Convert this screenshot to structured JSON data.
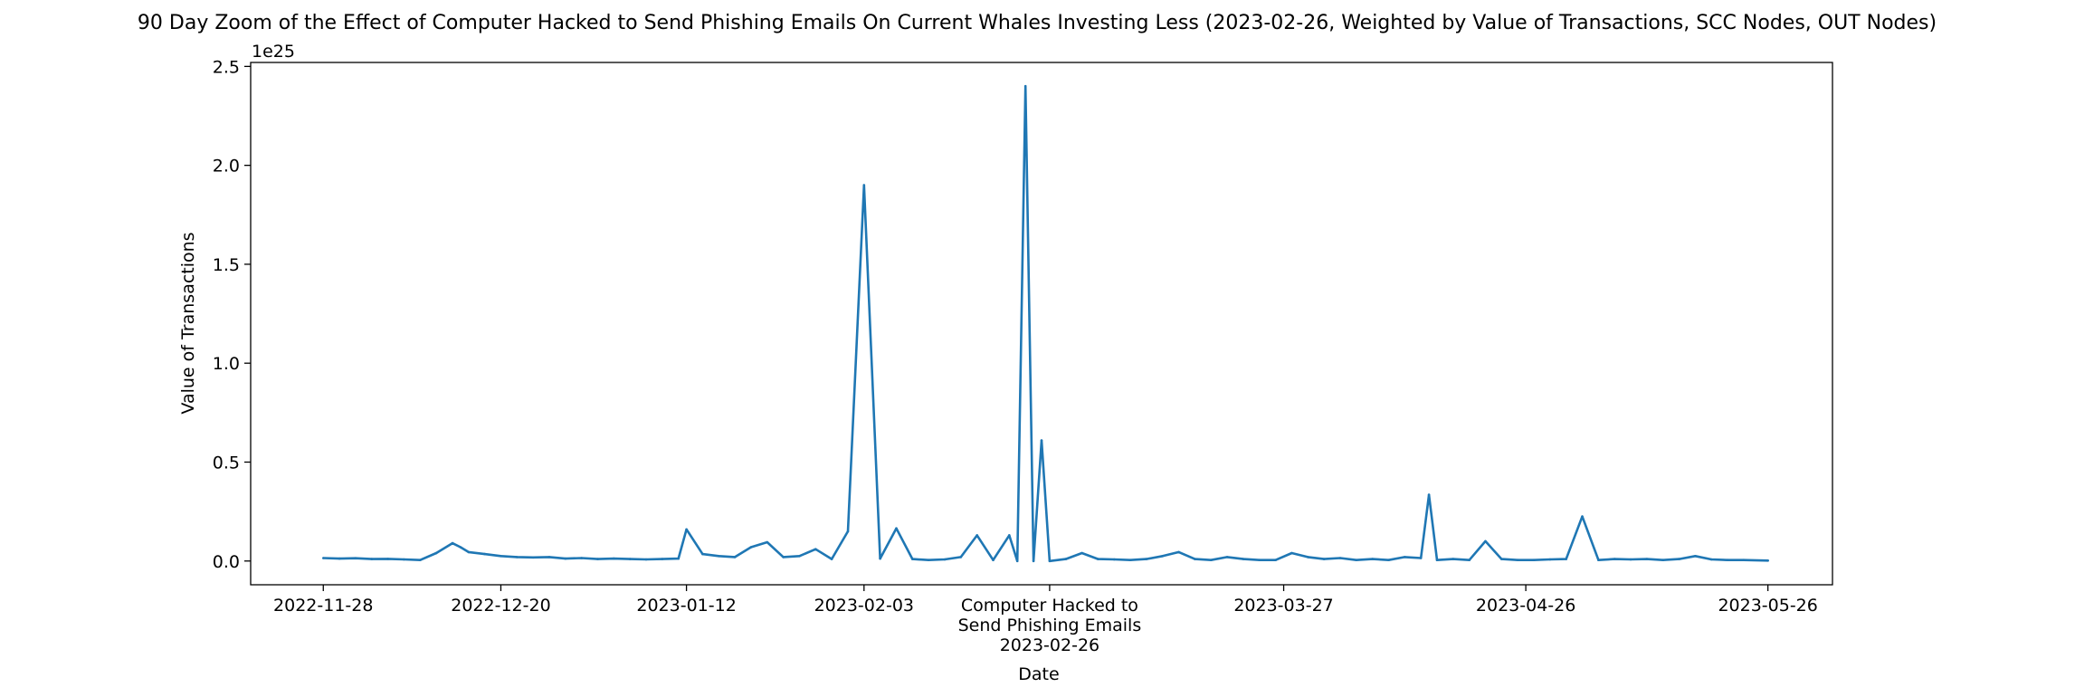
{
  "chart_data": {
    "type": "line",
    "title": "90 Day Zoom of the Effect of Computer Hacked to Send Phishing Emails On Current Whales Investing Less (2023-02-26, Weighted by Value of Transactions, SCC Nodes, OUT Nodes)",
    "xlabel": "Date",
    "ylabel": "Value of Transactions",
    "y_offset_text": "1e25",
    "y_multiplier": 1e+25,
    "ylim": [
      -0.12,
      2.52
    ],
    "xlim": [
      "2022-11-19",
      "2023-06-03"
    ],
    "grid": false,
    "legend": "none",
    "line_color": "#1f77b4",
    "x_ticks": [
      {
        "date": "2022-11-28",
        "label": "2022-11-28"
      },
      {
        "date": "2022-12-20",
        "label": "2022-12-20"
      },
      {
        "date": "2023-01-12",
        "label": "2023-01-12"
      },
      {
        "date": "2023-02-03",
        "label": "2023-02-03"
      },
      {
        "date": "2023-02-26",
        "label": "Computer Hacked to\nSend Phishing Emails\n2023-02-26"
      },
      {
        "date": "2023-03-27",
        "label": "2023-03-27"
      },
      {
        "date": "2023-04-26",
        "label": "2023-04-26"
      },
      {
        "date": "2023-05-26",
        "label": "2023-05-26"
      }
    ],
    "y_ticks": [
      "0.0",
      "0.5",
      "1.0",
      "1.5",
      "2.0",
      "2.5"
    ],
    "series": [
      {
        "x": [
          "2022-11-28",
          "2022-11-30",
          "2022-12-02",
          "2022-12-04",
          "2022-12-06",
          "2022-12-08",
          "2022-12-10",
          "2022-12-12",
          "2022-12-14",
          "2022-12-15",
          "2022-12-16",
          "2022-12-18",
          "2022-12-20",
          "2022-12-22",
          "2022-12-24",
          "2022-12-26",
          "2022-12-28",
          "2022-12-30",
          "2023-01-01",
          "2023-01-03",
          "2023-01-05",
          "2023-01-07",
          "2023-01-09",
          "2023-01-11",
          "2023-01-12",
          "2023-01-14",
          "2023-01-16",
          "2023-01-18",
          "2023-01-20",
          "2023-01-22",
          "2023-01-24",
          "2023-01-26",
          "2023-01-28",
          "2023-01-30",
          "2023-02-01",
          "2023-02-03",
          "2023-02-05",
          "2023-02-07",
          "2023-02-09",
          "2023-02-11",
          "2023-02-13",
          "2023-02-15",
          "2023-02-17",
          "2023-02-19",
          "2023-02-21",
          "2023-02-22",
          "2023-02-23",
          "2023-02-24",
          "2023-02-25",
          "2023-02-26",
          "2023-02-28",
          "2023-03-02",
          "2023-03-04",
          "2023-03-06",
          "2023-03-08",
          "2023-03-10",
          "2023-03-12",
          "2023-03-14",
          "2023-03-16",
          "2023-03-18",
          "2023-03-20",
          "2023-03-22",
          "2023-03-24",
          "2023-03-26",
          "2023-03-28",
          "2023-03-30",
          "2023-04-01",
          "2023-04-03",
          "2023-04-05",
          "2023-04-07",
          "2023-04-09",
          "2023-04-11",
          "2023-04-13",
          "2023-04-14",
          "2023-04-15",
          "2023-04-17",
          "2023-04-19",
          "2023-04-21",
          "2023-04-23",
          "2023-04-25",
          "2023-04-27",
          "2023-04-29",
          "2023-05-01",
          "2023-05-03",
          "2023-05-05",
          "2023-05-07",
          "2023-05-09",
          "2023-05-11",
          "2023-05-13",
          "2023-05-15",
          "2023-05-17",
          "2023-05-19",
          "2023-05-21",
          "2023-05-23",
          "2023-05-26"
        ],
        "y": [
          0.015,
          0.012,
          0.014,
          0.01,
          0.011,
          0.008,
          0.005,
          0.04,
          0.09,
          0.07,
          0.045,
          0.035,
          0.025,
          0.02,
          0.018,
          0.02,
          0.012,
          0.015,
          0.01,
          0.012,
          0.01,
          0.008,
          0.01,
          0.012,
          0.16,
          0.035,
          0.025,
          0.02,
          0.07,
          0.095,
          0.02,
          0.025,
          0.06,
          0.01,
          0.15,
          1.9,
          0.012,
          0.165,
          0.01,
          0.005,
          0.008,
          0.02,
          0.13,
          0.005,
          0.13,
          0.0,
          2.4,
          0.0,
          0.61,
          0.0,
          0.01,
          0.04,
          0.01,
          0.008,
          0.005,
          0.01,
          0.025,
          0.045,
          0.01,
          0.005,
          0.02,
          0.01,
          0.005,
          0.005,
          0.04,
          0.02,
          0.01,
          0.015,
          0.005,
          0.01,
          0.005,
          0.02,
          0.015,
          0.335,
          0.005,
          0.01,
          0.005,
          0.1,
          0.01,
          0.005,
          0.005,
          0.008,
          0.01,
          0.225,
          0.005,
          0.01,
          0.008,
          0.01,
          0.005,
          0.01,
          0.025,
          0.008,
          0.005,
          0.005,
          0.002
        ]
      }
    ]
  }
}
